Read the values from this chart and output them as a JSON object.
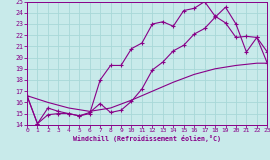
{
  "xlabel": "Windchill (Refroidissement éolien,°C)",
  "bg_color": "#c8eaea",
  "line_color": "#880088",
  "grid_color": "#a8d8d8",
  "xlim": [
    0,
    23
  ],
  "ylim": [
    14,
    25
  ],
  "yticks": [
    14,
    15,
    16,
    17,
    18,
    19,
    20,
    21,
    22,
    23,
    24,
    25
  ],
  "xticks": [
    0,
    1,
    2,
    3,
    4,
    5,
    6,
    7,
    8,
    9,
    10,
    11,
    12,
    13,
    14,
    15,
    16,
    17,
    18,
    19,
    20,
    21,
    22,
    23
  ],
  "c1x": [
    0,
    1,
    2,
    3,
    4,
    5,
    6,
    7,
    8,
    9,
    10,
    11,
    12,
    13,
    14,
    15,
    16,
    17,
    18,
    19,
    20,
    21,
    22,
    23
  ],
  "c1y": [
    16.6,
    14.1,
    14.9,
    15.0,
    15.0,
    14.8,
    15.0,
    18.0,
    19.3,
    19.3,
    20.8,
    21.3,
    23.0,
    23.2,
    22.8,
    24.2,
    24.4,
    25.0,
    23.7,
    23.1,
    21.8,
    21.9,
    21.8,
    20.5
  ],
  "c2x": [
    0,
    1,
    2,
    3,
    4,
    5,
    6,
    7,
    8,
    9,
    10,
    11,
    12,
    13,
    14,
    15,
    16,
    17,
    18,
    19,
    20,
    21,
    22,
    23
  ],
  "c2y": [
    16.6,
    14.1,
    15.5,
    15.2,
    15.0,
    14.8,
    15.1,
    15.9,
    15.1,
    15.3,
    16.1,
    17.2,
    18.9,
    19.6,
    20.6,
    21.1,
    22.1,
    22.6,
    23.6,
    24.5,
    23.0,
    20.5,
    21.8,
    19.5
  ],
  "c3x": [
    0,
    2,
    4,
    6,
    8,
    10,
    12,
    14,
    16,
    18,
    20,
    22,
    23
  ],
  "c3y": [
    16.6,
    16.0,
    15.5,
    15.2,
    15.5,
    16.2,
    17.0,
    17.8,
    18.5,
    19.0,
    19.3,
    19.5,
    19.5
  ]
}
